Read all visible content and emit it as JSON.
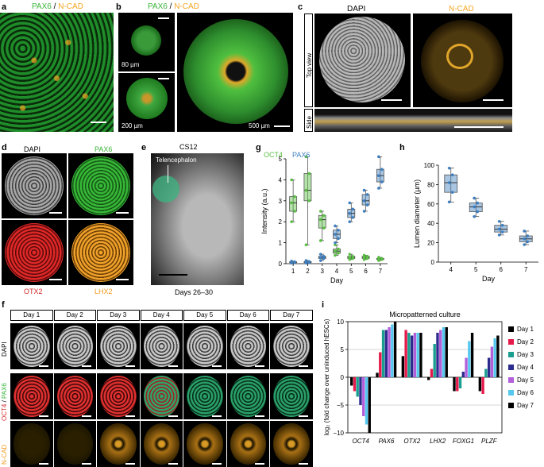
{
  "panels": {
    "a": {
      "label": "a",
      "title_part1": "PAX6",
      "title_sep": " / ",
      "title_part2": "N-CAD"
    },
    "b": {
      "label": "b",
      "title_part1": "PAX6",
      "title_sep": " / ",
      "title_part2": "N-CAD",
      "size1": "80 µm",
      "size2": "200 µm",
      "size3": "500 µm"
    },
    "c": {
      "label": "c",
      "ch1": "DAPI",
      "ch2": "N-CAD",
      "top_view": "Top view",
      "side": "Side"
    },
    "d": {
      "label": "d",
      "ch1": "DAPI",
      "ch2": "PAX6",
      "ch3": "OTX2",
      "ch4": "LHX2"
    },
    "e": {
      "label": "e",
      "stage": "CS12",
      "region": "Telencephalon",
      "days": "Days 26–30"
    },
    "f": {
      "label": "f",
      "days": [
        "Day 1",
        "Day 2",
        "Day 3",
        "Day 4",
        "Day 5",
        "Day 6",
        "Day 7"
      ],
      "row1": "DAPI",
      "row2_part1": "OCT4",
      "row2_sep": " / ",
      "row2_part2": "PAX6",
      "row3": "N-CAD"
    },
    "g": {
      "label": "g"
    },
    "h": {
      "label": "h"
    },
    "i": {
      "label": "i"
    }
  },
  "colors": {
    "pax6": "#3cb43c",
    "ncad": "#f5a623",
    "oct4": "#5cbf45",
    "pax6_plot": "#3f7fbf",
    "otx2": "#d62728",
    "lhx2": "#f09a1f"
  },
  "chart_data": [
    {
      "id": "g",
      "type": "box",
      "ylabel": "Intensity (a.u.)",
      "xlabel": "Day",
      "categories": [
        "1",
        "2",
        "3",
        "4",
        "5",
        "6",
        "7"
      ],
      "ylim": [
        0,
        5
      ],
      "yticks": [
        "0",
        "1",
        "2",
        "3",
        "4",
        "5"
      ],
      "series": [
        {
          "name": "OCT4",
          "color": "#5cbf45",
          "boxes": [
            {
              "x": "1",
              "min": 2.0,
              "q1": 2.5,
              "median": 2.9,
              "q3": 3.2,
              "max": 4.0
            },
            {
              "x": "2",
              "min": 0.9,
              "q1": 3.0,
              "median": 3.5,
              "q3": 4.3,
              "max": 5.1
            },
            {
              "x": "3",
              "min": 1.1,
              "q1": 1.7,
              "median": 2.1,
              "q3": 2.3,
              "max": 2.5
            },
            {
              "x": "4",
              "min": 0.4,
              "q1": 0.5,
              "median": 0.6,
              "q3": 0.7,
              "max": 0.9
            },
            {
              "x": "5",
              "min": 0.2,
              "q1": 0.25,
              "median": 0.3,
              "q3": 0.35,
              "max": 0.45
            },
            {
              "x": "6",
              "min": 0.2,
              "q1": 0.25,
              "median": 0.3,
              "q3": 0.35,
              "max": 0.4
            },
            {
              "x": "7",
              "min": 0.15,
              "q1": 0.2,
              "median": 0.22,
              "q3": 0.25,
              "max": 0.3
            }
          ]
        },
        {
          "name": "PAX6",
          "color": "#3f7fbf",
          "boxes": [
            {
              "x": "1",
              "min": 0.03,
              "q1": 0.05,
              "median": 0.07,
              "q3": 0.09,
              "max": 0.12
            },
            {
              "x": "2",
              "min": 0.03,
              "q1": 0.05,
              "median": 0.08,
              "q3": 0.1,
              "max": 0.15
            },
            {
              "x": "3",
              "min": 0.15,
              "q1": 0.25,
              "median": 0.3,
              "q3": 0.35,
              "max": 0.45
            },
            {
              "x": "4",
              "min": 1.0,
              "q1": 1.2,
              "median": 1.4,
              "q3": 1.6,
              "max": 1.8
            },
            {
              "x": "5",
              "min": 2.0,
              "q1": 2.2,
              "median": 2.4,
              "q3": 2.6,
              "max": 2.9
            },
            {
              "x": "6",
              "min": 2.5,
              "q1": 2.8,
              "median": 3.0,
              "q3": 3.3,
              "max": 3.5
            },
            {
              "x": "7",
              "min": 3.6,
              "q1": 3.9,
              "median": 4.2,
              "q3": 4.5,
              "max": 5.1
            }
          ]
        }
      ]
    },
    {
      "id": "h",
      "type": "box",
      "ylabel": "Lumen diameter (µm)",
      "xlabel": "Day",
      "categories": [
        "4",
        "5",
        "6",
        "7"
      ],
      "ylim": [
        0,
        100
      ],
      "yticks": [
        "0",
        "20",
        "40",
        "60",
        "80",
        "100"
      ],
      "series": [
        {
          "color": "#3f7fbf",
          "boxes": [
            {
              "x": "4",
              "min": 62,
              "q1": 72,
              "median": 82,
              "q3": 90,
              "max": 97
            },
            {
              "x": "5",
              "min": 47,
              "q1": 52,
              "median": 57,
              "q3": 61,
              "max": 66
            },
            {
              "x": "6",
              "min": 28,
              "q1": 31,
              "median": 34,
              "q3": 38,
              "max": 42
            },
            {
              "x": "7",
              "min": 18,
              "q1": 21,
              "median": 24,
              "q3": 27,
              "max": 32
            }
          ]
        }
      ]
    },
    {
      "id": "i",
      "type": "bar",
      "title": "Micropatterned culture",
      "ylabel": "log₂ (fold change over uninduced hESCs)",
      "categories": [
        "OCT4",
        "PAX6",
        "OTX2",
        "LHX2",
        "FOXG1",
        "PLZF"
      ],
      "ylim": [
        -10,
        10
      ],
      "yticks": [
        "−10",
        "−5",
        "0",
        "5",
        "10"
      ],
      "series": [
        {
          "name": "Day 1",
          "color": "#000000",
          "values": [
            -1.5,
            0.8,
            3.8,
            -0.5,
            -2.5,
            -2.5
          ]
        },
        {
          "name": "Day 2",
          "color": "#e6194b",
          "values": [
            -2.5,
            4.5,
            8.5,
            1.5,
            -2.5,
            -3.0
          ]
        },
        {
          "name": "Day 3",
          "color": "#1a9e8f",
          "values": [
            -3.5,
            8.5,
            8.0,
            6.0,
            -2.0,
            1.5
          ]
        },
        {
          "name": "Day 4",
          "color": "#2c2c8f",
          "values": [
            -5.0,
            8.5,
            7.5,
            8.0,
            1.0,
            3.5
          ]
        },
        {
          "name": "Day 5",
          "color": "#b25fd9",
          "values": [
            -7.0,
            9.0,
            8.0,
            8.5,
            3.5,
            5.5
          ]
        },
        {
          "name": "Day 6",
          "color": "#56c8f0",
          "values": [
            -8.5,
            9.5,
            8.0,
            9.0,
            6.5,
            7.0
          ]
        },
        {
          "name": "Day 7",
          "color": "#000000",
          "values": [
            -10.0,
            10.0,
            8.0,
            9.0,
            8.0,
            7.5
          ]
        }
      ]
    }
  ]
}
